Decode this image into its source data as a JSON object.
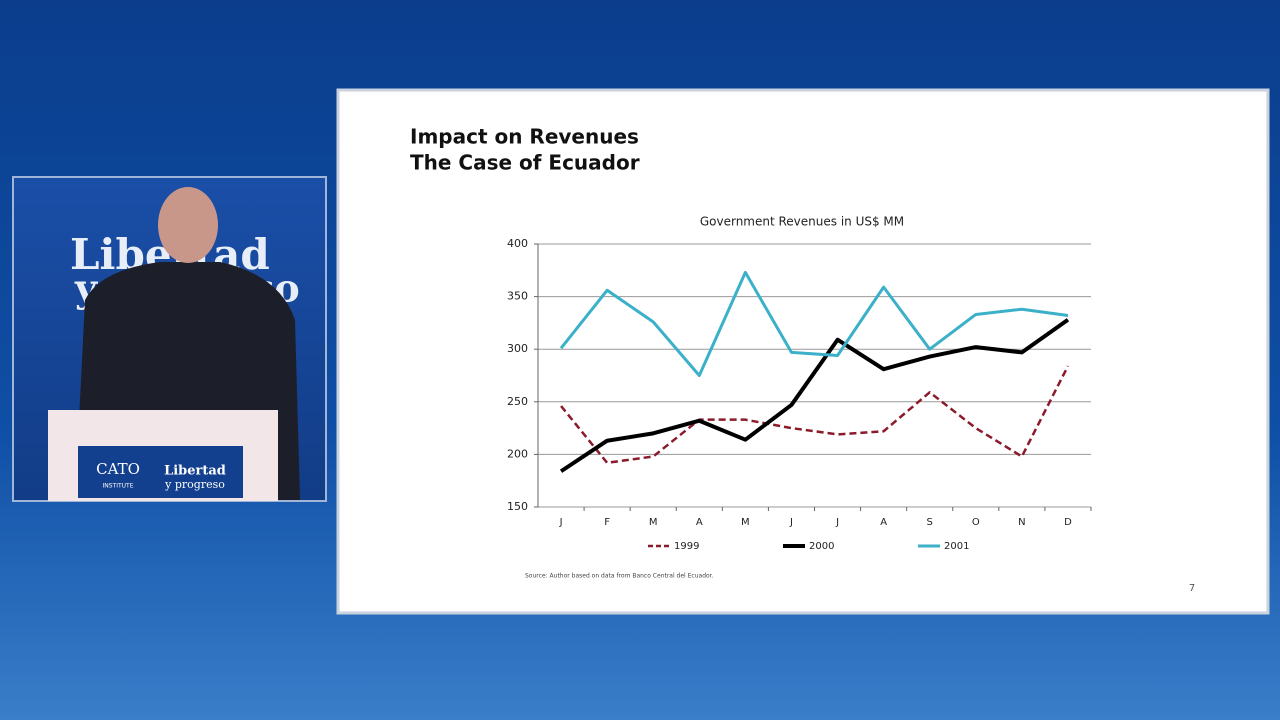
{
  "logos": {
    "panel_brand_top": "Libertad",
    "panel_brand_bottom": "y progreso",
    "podium_left": "CATO",
    "podium_left_sub": "INSTITUTE",
    "podium_right_top": "Libertad",
    "podium_right_bottom": "y progreso"
  },
  "slide": {
    "title_lines": [
      "Impact on Revenues",
      "The Case of Ecuador"
    ],
    "source": "Source: Author based on data from Banco Central del Ecuador.",
    "page_number": "7"
  },
  "chart_data": {
    "type": "line",
    "title": "Government Revenues in US$ MM",
    "categories": [
      "J",
      "F",
      "M",
      "A",
      "M",
      "J",
      "J",
      "A",
      "S",
      "O",
      "N",
      "D"
    ],
    "series": [
      {
        "name": "1999",
        "color": "#8b1a2b",
        "style": "dashed",
        "values": [
          246,
          192,
          198,
          233,
          233,
          225,
          219,
          222,
          259,
          225,
          198,
          284
        ]
      },
      {
        "name": "2000",
        "color": "#000000",
        "style": "solid",
        "values": [
          184,
          213,
          220,
          232,
          214,
          247,
          309,
          281,
          293,
          302,
          297,
          328
        ]
      },
      {
        "name": "2001",
        "color": "#3bb0c9",
        "style": "solid",
        "values": [
          301,
          356,
          326,
          275,
          373,
          297,
          294,
          359,
          300,
          333,
          338,
          332
        ]
      }
    ],
    "ylim": [
      150,
      400
    ],
    "yticks": [
      150,
      200,
      250,
      300,
      350,
      400
    ],
    "grid": true,
    "legend": "bottom"
  }
}
